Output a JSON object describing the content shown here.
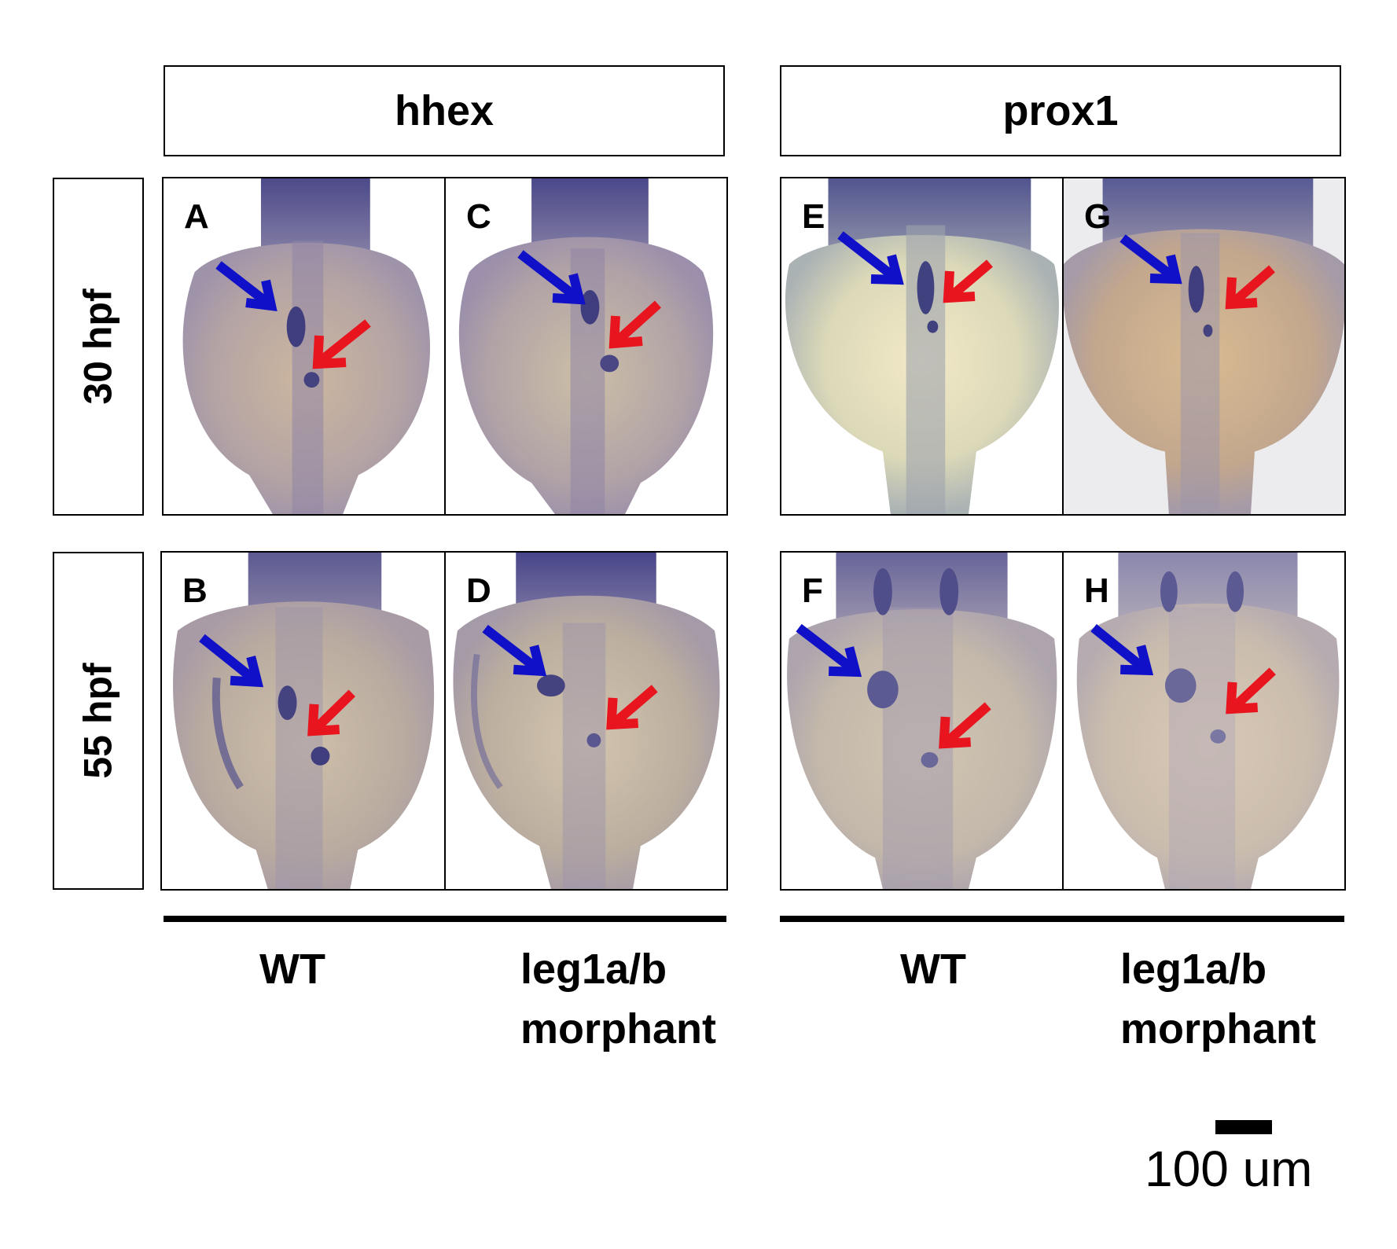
{
  "genes": [
    "hhex",
    "prox1"
  ],
  "timepoints": [
    "30 hpf",
    "55 hpf"
  ],
  "panels": {
    "A": {
      "label": "A"
    },
    "B": {
      "label": "B"
    },
    "C": {
      "label": "C"
    },
    "D": {
      "label": "D"
    },
    "E": {
      "label": "E"
    },
    "F": {
      "label": "F"
    },
    "G": {
      "label": "G"
    },
    "H": {
      "label": "H"
    }
  },
  "conditions": {
    "wt": "WT",
    "morphant_line1": "leg1a/b",
    "morphant_line2": "morphant"
  },
  "scale_bar": {
    "label": "100 um"
  },
  "colors": {
    "blue_arrow": "#1010c8",
    "red_arrow": "#e8141e",
    "stain": "#4b4a8e",
    "yolk": "#c9b9a4"
  }
}
